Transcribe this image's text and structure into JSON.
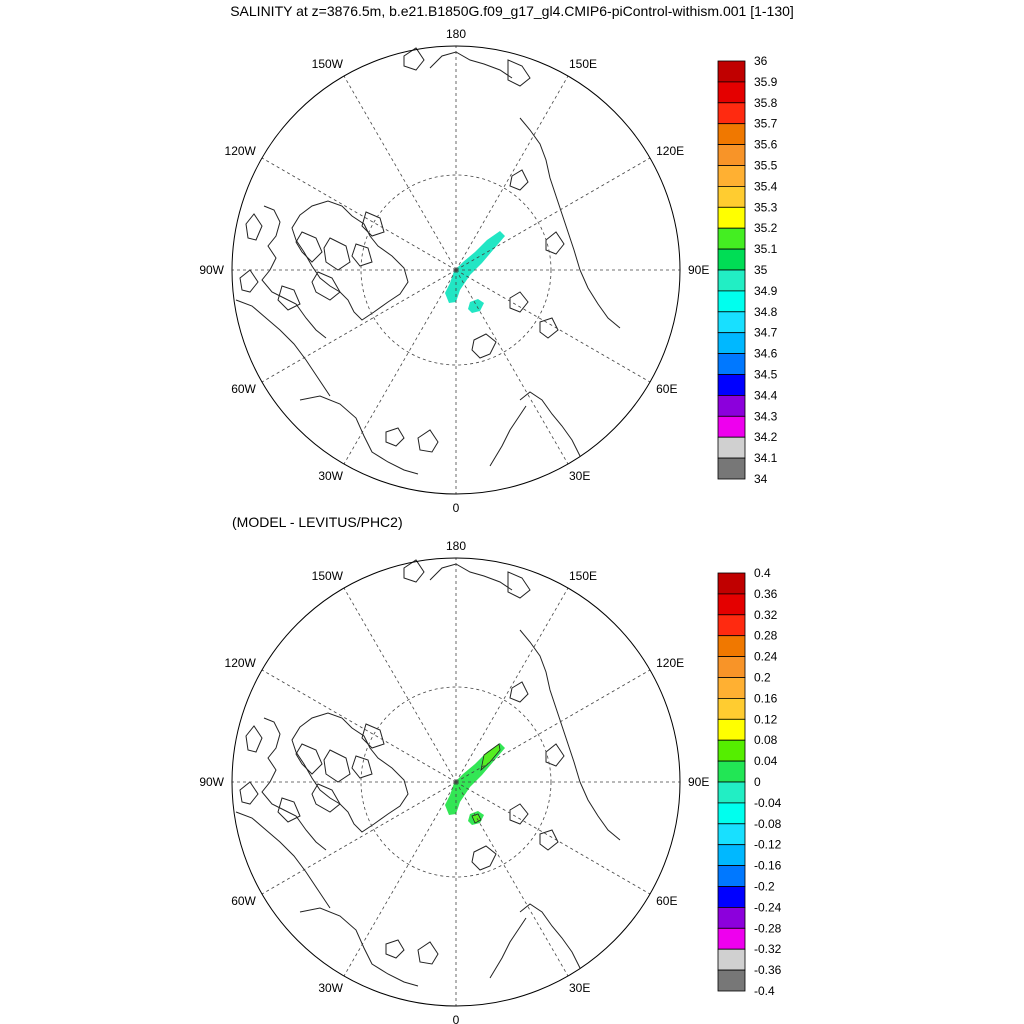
{
  "title": "SALINITY at z=3876.5m, b.e21.B1850G.f09_g17_gl4.CMIP6-piControl-withism.001 [1-130]",
  "subtitle": "(MODEL - LEVITUS/PHC2)",
  "meridian_labels": [
    {
      "lon": 180,
      "text": "180"
    },
    {
      "lon": 150,
      "text": "150E"
    },
    {
      "lon": 120,
      "text": "120E"
    },
    {
      "lon": 90,
      "text": "90E"
    },
    {
      "lon": 60,
      "text": "60E"
    },
    {
      "lon": 30,
      "text": "30E"
    },
    {
      "lon": 0,
      "text": "0"
    },
    {
      "lon": -30,
      "text": "30W"
    },
    {
      "lon": -60,
      "text": "60W"
    },
    {
      "lon": -90,
      "text": "90W"
    },
    {
      "lon": -120,
      "text": "120W"
    },
    {
      "lon": -150,
      "text": "150W"
    }
  ],
  "colors": {
    "salinity_field": "#22e6c4",
    "difference_field": "#33e655",
    "difference_patch_high": "#55ee22"
  },
  "colorbars": [
    {
      "name": "salinity",
      "labels": [
        "36",
        "35.9",
        "35.8",
        "35.7",
        "35.6",
        "35.5",
        "35.4",
        "35.3",
        "35.2",
        "35.1",
        "35",
        "34.9",
        "34.8",
        "34.7",
        "34.6",
        "34.5",
        "34.4",
        "34.3",
        "34.2",
        "34.1",
        "34"
      ],
      "colors": [
        "#c00000",
        "#e40000",
        "#ff2a10",
        "#f07800",
        "#f89428",
        "#ffb032",
        "#ffcc30",
        "#ffff00",
        "#44ee22",
        "#00dd55",
        "#22eec4",
        "#00ffee",
        "#18e0ff",
        "#00b8ff",
        "#0078ff",
        "#0000ff",
        "#8c00dc",
        "#ee00ee",
        "#d0d0d0",
        "#777777"
      ]
    },
    {
      "name": "difference",
      "labels": [
        "0.4",
        "0.36",
        "0.32",
        "0.28",
        "0.24",
        "0.2",
        "0.16",
        "0.12",
        "0.08",
        "0.04",
        "0",
        "-0.04",
        "-0.08",
        "-0.12",
        "-0.16",
        "-0.2",
        "-0.24",
        "-0.28",
        "-0.32",
        "-0.36",
        "-0.4"
      ],
      "colors": [
        "#c00000",
        "#e40000",
        "#ff2a10",
        "#f07800",
        "#f89428",
        "#ffb032",
        "#ffcc30",
        "#ffff00",
        "#55ee00",
        "#22e655",
        "#22eec4",
        "#00ffee",
        "#18e0ff",
        "#00b8ff",
        "#0078ff",
        "#0000ff",
        "#8c00dc",
        "#ee00ee",
        "#d0d0d0",
        "#777777"
      ]
    }
  ]
}
